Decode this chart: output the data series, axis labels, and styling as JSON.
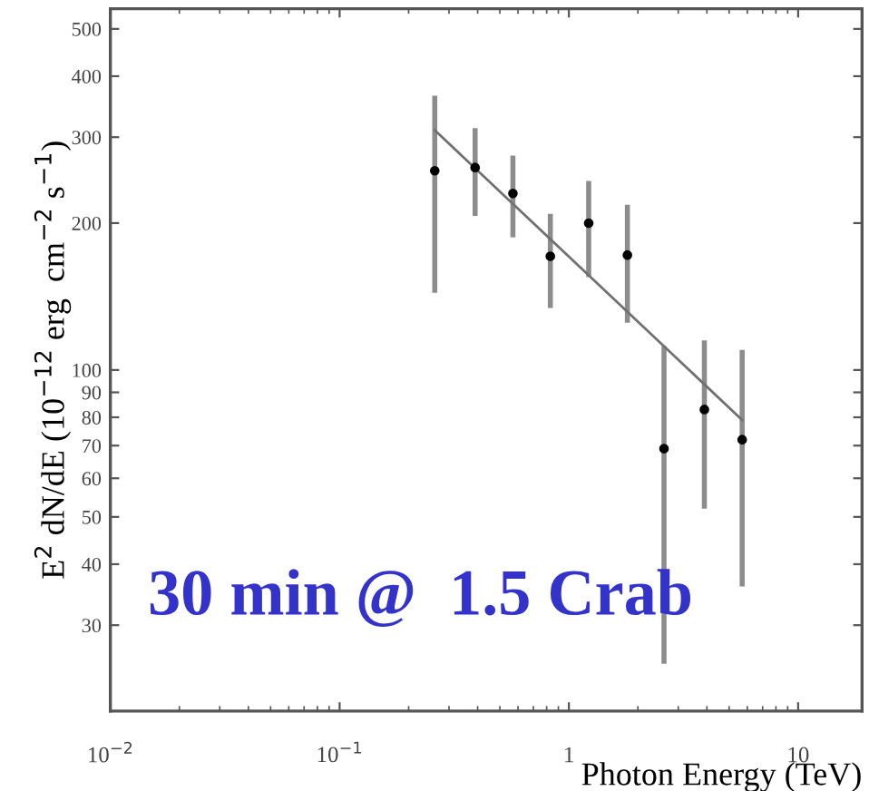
{
  "chart_data": {
    "type": "scatter",
    "xlabel": "Photon Energy (TeV)",
    "ylabel": "E$^{2}$ dN/dE (10$^{−12}$ erg  cm$^{−2}$ s$^{−1}$)",
    "log": "xy",
    "xlim": [
      0.01,
      19
    ],
    "ylim": [
      20,
      550
    ],
    "xticks": [
      {
        "value": 0.01,
        "label": "10$^{−2}$"
      },
      {
        "value": 0.1,
        "label": "10$^{−1}$"
      },
      1,
      10
    ],
    "yticks": [
      30,
      40,
      50,
      60,
      70,
      80,
      90,
      100,
      200,
      300,
      400,
      500
    ],
    "grid": false,
    "marker": "circle",
    "series": [
      {
        "color": "#000000",
        "x": [
          0.26,
          0.39,
          0.57,
          0.83,
          1.22,
          1.8,
          2.6,
          3.9,
          5.7
        ],
        "values": [
          256,
          260,
          230,
          171,
          200,
          172,
          69,
          83,
          72
        ],
        "errors": [
          [
            144,
            365
          ],
          [
            207,
            313
          ],
          [
            187,
            275
          ],
          [
            134,
            209
          ],
          [
            155,
            244
          ],
          [
            125,
            218
          ],
          [
            25,
            112
          ],
          [
            52,
            115
          ],
          [
            36,
            110
          ]
        ]
      },
      {
        "type": "line",
        "color": "#707070",
        "x": [
          0.26,
          5.7
        ],
        "values": [
          310,
          79
        ],
        "line_style": "solid",
        "marker": "none"
      }
    ],
    "annotations": [
      {
        "text": "30 min @  1.5 Crab"
      }
    ]
  }
}
